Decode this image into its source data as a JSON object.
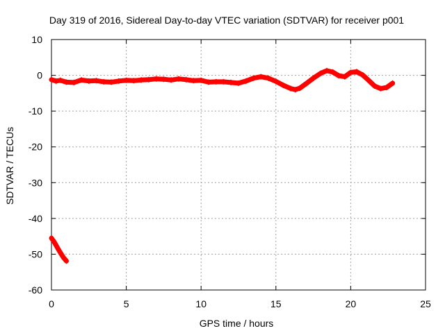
{
  "chart_data": {
    "type": "scatter",
    "title": "Day 319 of 2016, Sidereal Day-to-day VTEC variation (SDTVAR) for receiver p001",
    "xlabel": "GPS time / hours",
    "ylabel": "SDTVAR / TECUs",
    "xlim": [
      0,
      25
    ],
    "ylim": [
      -60,
      10
    ],
    "xticks": [
      0,
      5,
      10,
      15,
      20,
      25
    ],
    "yticks": [
      -60,
      -50,
      -40,
      -30,
      -20,
      -10,
      0,
      10
    ],
    "xtick_labels": [
      "0",
      "5",
      "10",
      "15",
      "20",
      "25"
    ],
    "ytick_labels": [
      "-60",
      "-50",
      "-40",
      "-30",
      "-20",
      "-10",
      "0",
      "10"
    ],
    "grid": true,
    "color": "#ff0000",
    "series": [
      {
        "name": "main",
        "points": [
          [
            0.0,
            -1.2
          ],
          [
            0.3,
            -1.6
          ],
          [
            0.6,
            -1.4
          ],
          [
            1.0,
            -1.9
          ],
          [
            1.5,
            -2.0
          ],
          [
            2.0,
            -1.3
          ],
          [
            2.5,
            -1.6
          ],
          [
            3.0,
            -1.5
          ],
          [
            3.5,
            -1.8
          ],
          [
            4.0,
            -1.9
          ],
          [
            4.5,
            -1.6
          ],
          [
            5.0,
            -1.4
          ],
          [
            5.5,
            -1.5
          ],
          [
            6.0,
            -1.3
          ],
          [
            6.5,
            -1.2
          ],
          [
            7.0,
            -1.0
          ],
          [
            7.5,
            -1.1
          ],
          [
            8.0,
            -1.3
          ],
          [
            8.5,
            -1.0
          ],
          [
            9.0,
            -1.2
          ],
          [
            9.5,
            -1.5
          ],
          [
            10.0,
            -1.4
          ],
          [
            10.5,
            -1.9
          ],
          [
            11.0,
            -1.8
          ],
          [
            11.5,
            -1.8
          ],
          [
            12.0,
            -2.0
          ],
          [
            12.5,
            -2.2
          ],
          [
            13.0,
            -1.6
          ],
          [
            13.5,
            -0.8
          ],
          [
            14.0,
            -0.4
          ],
          [
            14.5,
            -0.8
          ],
          [
            15.0,
            -1.7
          ],
          [
            15.5,
            -2.8
          ],
          [
            16.0,
            -3.7
          ],
          [
            16.3,
            -4.0
          ],
          [
            16.6,
            -3.6
          ],
          [
            17.0,
            -2.4
          ],
          [
            17.5,
            -0.8
          ],
          [
            18.0,
            0.6
          ],
          [
            18.4,
            1.3
          ],
          [
            18.8,
            0.9
          ],
          [
            19.2,
            -0.1
          ],
          [
            19.6,
            -0.4
          ],
          [
            20.0,
            0.8
          ],
          [
            20.4,
            1.0
          ],
          [
            20.8,
            0.1
          ],
          [
            21.2,
            -1.4
          ],
          [
            21.6,
            -3.0
          ],
          [
            22.0,
            -3.7
          ],
          [
            22.4,
            -3.4
          ],
          [
            22.8,
            -2.2
          ]
        ]
      },
      {
        "name": "start",
        "points": [
          [
            0.0,
            -45.5
          ],
          [
            0.2,
            -46.7
          ],
          [
            0.4,
            -48.2
          ],
          [
            0.6,
            -49.6
          ],
          [
            0.8,
            -50.9
          ],
          [
            1.0,
            -51.9
          ]
        ]
      }
    ]
  }
}
